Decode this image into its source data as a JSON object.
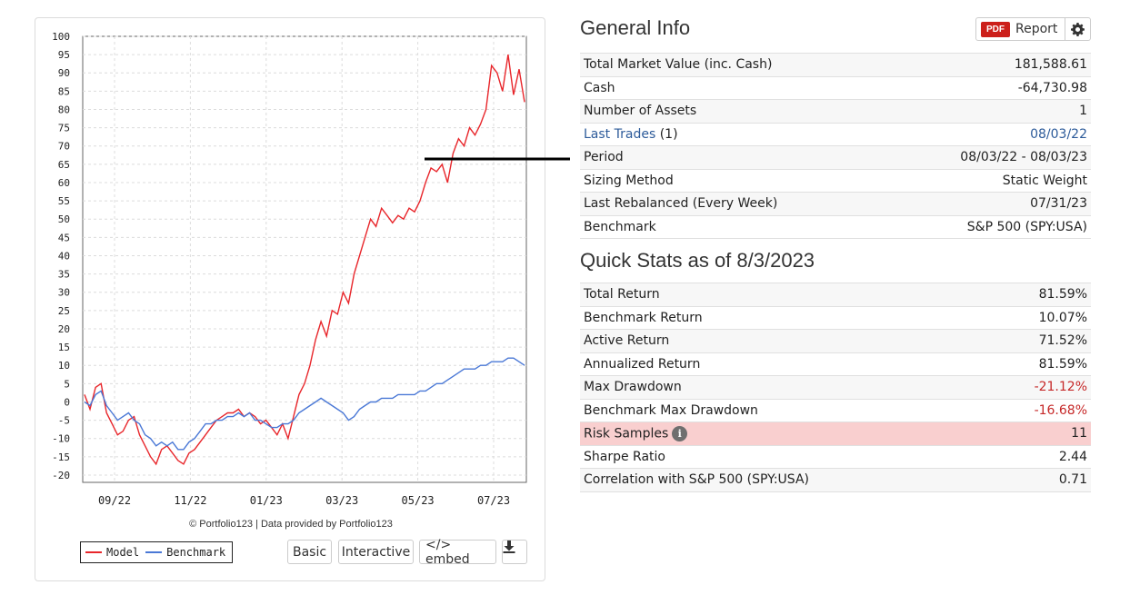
{
  "chart": {
    "credit": "© Portfolio123 | Data provided by Portfolio123",
    "legend": {
      "model": "Model",
      "benchmark": "Benchmark"
    },
    "buttons": {
      "basic": "Basic",
      "interactive": "Interactive",
      "embed": "</> embed"
    },
    "colors": {
      "model": "#e8262b",
      "benchmark": "#4a78d6"
    }
  },
  "chart_data": {
    "type": "line",
    "yticks": [
      "100",
      "95",
      "90",
      "85",
      "80",
      "75",
      "70",
      "65",
      "60",
      "55",
      "50",
      "45",
      "40",
      "35",
      "30",
      "25",
      "20",
      "15",
      "10",
      "5",
      "0",
      "-5",
      "-10",
      "-15",
      "-20"
    ],
    "xticks": [
      "09/22",
      "11/22",
      "01/23",
      "03/23",
      "05/23",
      "07/23"
    ],
    "ylim": [
      -22,
      100
    ],
    "grid": true,
    "legend_position": "bottom-left",
    "series": [
      {
        "name": "Model",
        "color": "#e8262b",
        "points": [
          [
            0,
            2
          ],
          [
            1,
            -2
          ],
          [
            2,
            4
          ],
          [
            3,
            5
          ],
          [
            4,
            -3
          ],
          [
            5,
            -6
          ],
          [
            6,
            -9
          ],
          [
            7,
            -8
          ],
          [
            8,
            -5
          ],
          [
            9,
            -4
          ],
          [
            10,
            -9
          ],
          [
            11,
            -12
          ],
          [
            12,
            -15
          ],
          [
            13,
            -17
          ],
          [
            14,
            -13
          ],
          [
            15,
            -12
          ],
          [
            16,
            -14
          ],
          [
            17,
            -16
          ],
          [
            18,
            -17
          ],
          [
            19,
            -14
          ],
          [
            20,
            -13
          ],
          [
            21,
            -11
          ],
          [
            22,
            -9
          ],
          [
            23,
            -7
          ],
          [
            24,
            -5
          ],
          [
            25,
            -4
          ],
          [
            26,
            -3
          ],
          [
            27,
            -3
          ],
          [
            28,
            -2
          ],
          [
            29,
            -4
          ],
          [
            30,
            -3
          ],
          [
            31,
            -4
          ],
          [
            32,
            -6
          ],
          [
            33,
            -5
          ],
          [
            34,
            -7
          ],
          [
            35,
            -9
          ],
          [
            36,
            -6
          ],
          [
            37,
            -10
          ],
          [
            38,
            -4
          ],
          [
            39,
            2
          ],
          [
            40,
            5
          ],
          [
            41,
            10
          ],
          [
            42,
            17
          ],
          [
            43,
            22
          ],
          [
            44,
            18
          ],
          [
            45,
            25
          ],
          [
            46,
            24
          ],
          [
            47,
            30
          ],
          [
            48,
            27
          ],
          [
            49,
            35
          ],
          [
            50,
            40
          ],
          [
            51,
            45
          ],
          [
            52,
            50
          ],
          [
            53,
            48
          ],
          [
            54,
            53
          ],
          [
            55,
            51
          ],
          [
            56,
            49
          ],
          [
            57,
            51
          ],
          [
            58,
            50
          ],
          [
            59,
            53
          ],
          [
            60,
            52
          ],
          [
            61,
            55
          ],
          [
            62,
            60
          ],
          [
            63,
            64
          ],
          [
            64,
            63
          ],
          [
            65,
            65
          ],
          [
            66,
            60
          ],
          [
            67,
            68
          ],
          [
            68,
            72
          ],
          [
            69,
            70
          ],
          [
            70,
            75
          ],
          [
            71,
            73
          ],
          [
            72,
            76
          ],
          [
            73,
            80
          ],
          [
            74,
            92
          ],
          [
            75,
            90
          ],
          [
            76,
            85
          ],
          [
            77,
            95
          ],
          [
            78,
            84
          ],
          [
            79,
            91
          ],
          [
            80,
            82
          ]
        ]
      },
      {
        "name": "Benchmark",
        "color": "#4a78d6",
        "points": [
          [
            0,
            0
          ],
          [
            1,
            -1
          ],
          [
            2,
            2
          ],
          [
            3,
            3
          ],
          [
            4,
            -1
          ],
          [
            5,
            -3
          ],
          [
            6,
            -5
          ],
          [
            7,
            -4
          ],
          [
            8,
            -3
          ],
          [
            9,
            -5
          ],
          [
            10,
            -6
          ],
          [
            11,
            -9
          ],
          [
            12,
            -10
          ],
          [
            13,
            -12
          ],
          [
            14,
            -11
          ],
          [
            15,
            -12
          ],
          [
            16,
            -11
          ],
          [
            17,
            -13
          ],
          [
            18,
            -13
          ],
          [
            19,
            -11
          ],
          [
            20,
            -10
          ],
          [
            21,
            -8
          ],
          [
            22,
            -6
          ],
          [
            23,
            -6
          ],
          [
            24,
            -5
          ],
          [
            25,
            -5
          ],
          [
            26,
            -4
          ],
          [
            27,
            -4
          ],
          [
            28,
            -3
          ],
          [
            29,
            -4
          ],
          [
            30,
            -3
          ],
          [
            31,
            -5
          ],
          [
            32,
            -5
          ],
          [
            33,
            -6
          ],
          [
            34,
            -7
          ],
          [
            35,
            -7
          ],
          [
            36,
            -6
          ],
          [
            37,
            -6
          ],
          [
            38,
            -5
          ],
          [
            39,
            -3
          ],
          [
            40,
            -2
          ],
          [
            41,
            -1
          ],
          [
            42,
            0
          ],
          [
            43,
            1
          ],
          [
            44,
            0
          ],
          [
            45,
            -1
          ],
          [
            46,
            -2
          ],
          [
            47,
            -3
          ],
          [
            48,
            -5
          ],
          [
            49,
            -4
          ],
          [
            50,
            -2
          ],
          [
            51,
            -1
          ],
          [
            52,
            0
          ],
          [
            53,
            0
          ],
          [
            54,
            1
          ],
          [
            55,
            1
          ],
          [
            56,
            1
          ],
          [
            57,
            2
          ],
          [
            58,
            2
          ],
          [
            59,
            2
          ],
          [
            60,
            2
          ],
          [
            61,
            3
          ],
          [
            62,
            3
          ],
          [
            63,
            4
          ],
          [
            64,
            5
          ],
          [
            65,
            5
          ],
          [
            66,
            6
          ],
          [
            67,
            7
          ],
          [
            68,
            8
          ],
          [
            69,
            9
          ],
          [
            70,
            9
          ],
          [
            71,
            9
          ],
          [
            72,
            10
          ],
          [
            73,
            10
          ],
          [
            74,
            11
          ],
          [
            75,
            11
          ],
          [
            76,
            11
          ],
          [
            77,
            12
          ],
          [
            78,
            12
          ],
          [
            79,
            11
          ],
          [
            80,
            10
          ]
        ]
      }
    ]
  },
  "general": {
    "title": "General Info",
    "report_badge": "PDF",
    "report_label": "Report",
    "rows": [
      {
        "label": "Total Market Value (inc. Cash)",
        "value": "181,588.61"
      },
      {
        "label": "Cash",
        "value": "-64,730.98"
      },
      {
        "label": "Number of Assets",
        "value": "1"
      },
      {
        "label": "Last Trades",
        "suffix": "(1)",
        "value": "08/03/22"
      },
      {
        "label": "Period",
        "value": "08/03/22 - 08/03/23"
      },
      {
        "label": "Sizing Method",
        "value": "Static Weight"
      },
      {
        "label": "Last Rebalanced (Every Week)",
        "value": "07/31/23"
      },
      {
        "label": "Benchmark",
        "value": "S&P 500 (SPY:USA)"
      }
    ]
  },
  "quick": {
    "title": "Quick Stats as of 8/3/2023",
    "rows": [
      {
        "label": "Total Return",
        "value": "81.59%"
      },
      {
        "label": "Benchmark Return",
        "value": "10.07%"
      },
      {
        "label": "Active Return",
        "value": "71.52%"
      },
      {
        "label": "Annualized Return",
        "value": "81.59%"
      },
      {
        "label": "Max Drawdown",
        "value": "-21.12%"
      },
      {
        "label": "Benchmark Max Drawdown",
        "value": "-16.68%"
      },
      {
        "label": "Risk Samples",
        "value": "11"
      },
      {
        "label": "Sharpe Ratio",
        "value": "2.44"
      },
      {
        "label": "Correlation with S&P 500 (SPY:USA)",
        "value": "0.71"
      }
    ]
  }
}
